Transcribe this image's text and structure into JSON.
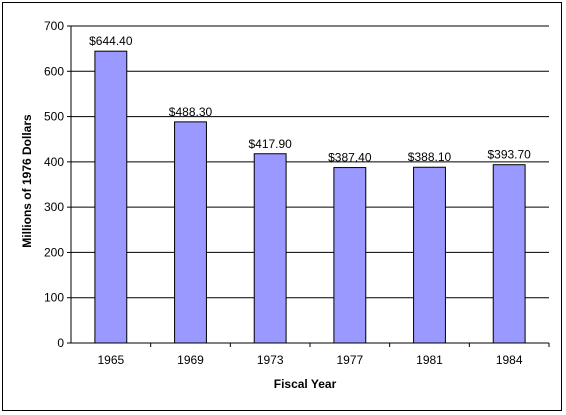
{
  "chart_data": {
    "type": "bar",
    "title": "",
    "xlabel": "Fiscal Year",
    "ylabel": "Millions of 1976 Dollars",
    "categories": [
      "1965",
      "1969",
      "1973",
      "1977",
      "1981",
      "1984"
    ],
    "values": [
      644.4,
      488.3,
      417.9,
      387.4,
      388.1,
      393.7
    ],
    "data_labels": [
      "$644.40",
      "$488.30",
      "$417.90",
      "$387.40",
      "$388.10",
      "$393.70"
    ],
    "ylim": [
      0,
      700
    ],
    "yticks": [
      0,
      100,
      200,
      300,
      400,
      500,
      600,
      700
    ],
    "ytick_labels": [
      "0",
      "100",
      "200",
      "300",
      "400",
      "500",
      "600",
      "700"
    ],
    "grid": true,
    "legend": "none",
    "colors": {
      "bar_fill": "#9999ff",
      "bar_stroke": "#000000",
      "gridline": "#000000",
      "axis": "#000000"
    }
  }
}
